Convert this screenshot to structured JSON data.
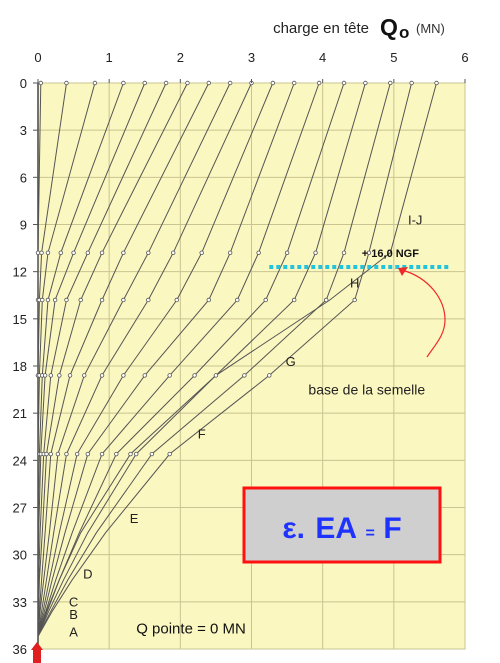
{
  "chart_data": {
    "type": "line",
    "title": "charge en tête",
    "title_symbol": "Q",
    "title_subscript": "o",
    "title_unit": "(MN)",
    "x_axis": {
      "range": [
        0,
        6
      ],
      "ticks": [
        0,
        1,
        2,
        3,
        4,
        5,
        6
      ],
      "position": "top"
    },
    "y_axis": {
      "range": [
        0,
        36
      ],
      "ticks": [
        0,
        3,
        6,
        9,
        12,
        15,
        18,
        21,
        24,
        27,
        30,
        33,
        36
      ],
      "inverted": true
    },
    "grid": true,
    "marker_depths": [
      0,
      10.8,
      13.8,
      18.6,
      23.6,
      28.6,
      31.6,
      33.6,
      35.2
    ],
    "series": [
      {
        "values": [
          0.04,
          0,
          0,
          0,
          0,
          0,
          0,
          0,
          0
        ]
      },
      {
        "values": [
          0.4,
          0.05,
          0.02,
          0,
          0,
          0,
          0,
          0,
          0
        ]
      },
      {
        "values": [
          0.8,
          0.14,
          0.06,
          0.02,
          0,
          0,
          0,
          0,
          0
        ]
      },
      {
        "values": [
          1.2,
          0.32,
          0.14,
          0.06,
          0.02,
          0,
          0,
          0,
          0
        ]
      },
      {
        "values": [
          1.5,
          0.5,
          0.24,
          0.1,
          0.04,
          0.01,
          0,
          0,
          0
        ]
      },
      {
        "values": [
          1.8,
          0.7,
          0.4,
          0.18,
          0.08,
          0.03,
          0.01,
          0,
          0
        ]
      },
      {
        "values": [
          2.1,
          0.9,
          0.6,
          0.3,
          0.12,
          0.06,
          0.02,
          0.01,
          0
        ]
      },
      {
        "values": [
          2.4,
          1.2,
          0.9,
          0.45,
          0.18,
          0.1,
          0.05,
          0.02,
          0
        ]
      },
      {
        "values": [
          2.7,
          1.55,
          1.2,
          0.65,
          0.28,
          0.16,
          0.08,
          0.03,
          0
        ]
      },
      {
        "values": [
          3.0,
          1.9,
          1.55,
          0.9,
          0.4,
          0.22,
          0.12,
          0.05,
          0
        ]
      },
      {
        "values": [
          3.3,
          2.3,
          1.95,
          1.2,
          0.55,
          0.3,
          0.16,
          0.07,
          0
        ]
      },
      {
        "values": [
          3.6,
          2.7,
          2.4,
          1.5,
          0.7,
          0.38,
          0.2,
          0.09,
          0
        ]
      },
      {
        "values": [
          3.95,
          3.1,
          2.8,
          1.85,
          0.9,
          0.48,
          0.25,
          0.11,
          0
        ]
      },
      {
        "values": [
          4.3,
          3.5,
          3.2,
          2.2,
          1.1,
          0.58,
          0.3,
          0.13,
          0
        ]
      },
      {
        "values": [
          4.6,
          3.9,
          3.6,
          2.5,
          1.38,
          0.7,
          0.36,
          0.15,
          0
        ]
      },
      {
        "values": [
          4.95,
          4.3,
          4.05,
          2.9,
          1.6,
          0.82,
          0.42,
          0.18,
          0
        ]
      },
      {
        "values": [
          5.25,
          4.65,
          4.45,
          3.25,
          1.85,
          0.95,
          0.48,
          0.2,
          0
        ]
      },
      {
        "values": [
          5.6,
          4.95,
          4.1,
          2.5,
          1.3,
          0.6,
          0.3,
          0.12,
          0
        ]
      }
    ],
    "zone_labels": [
      {
        "text": "I-J",
        "x": 5.3,
        "y": 9.0
      },
      {
        "text": "H",
        "x": 4.45,
        "y": 13.0
      },
      {
        "text": "G",
        "x": 3.55,
        "y": 18.0
      },
      {
        "text": "F",
        "x": 2.3,
        "y": 22.6
      },
      {
        "text": "E",
        "x": 1.35,
        "y": 28.0
      },
      {
        "text": "D",
        "x": 0.7,
        "y": 31.5
      },
      {
        "text": "C",
        "x": 0.5,
        "y": 33.3
      },
      {
        "text": "B",
        "x": 0.5,
        "y": 34.1
      },
      {
        "text": "A",
        "x": 0.5,
        "y": 35.2
      }
    ],
    "reference_level": {
      "label": "+ 16,0 NGF",
      "y": 11.7,
      "x_range": [
        3.25,
        5.8
      ]
    },
    "annotations": [
      {
        "text": "base de la semelle",
        "x": 3.8,
        "y": 19.8
      },
      {
        "text": "Q pointe = 0 MN",
        "x": 1.38,
        "y": 35.0
      }
    ],
    "equation": {
      "symbol": "ε.",
      "ea": "EA",
      "eq": "=",
      "f": "F"
    }
  },
  "colors": {
    "plot_background": "#fbf7c0",
    "grid": "#c9c491",
    "curve": "#555555",
    "reference_line": "#21c4dc",
    "annotation_arrow": "#ee2a2a",
    "equation_text": "#1f33ff",
    "equation_border": "#ff1111",
    "equation_fill": "#cfcfcf",
    "axis_marker": "#e02020"
  }
}
